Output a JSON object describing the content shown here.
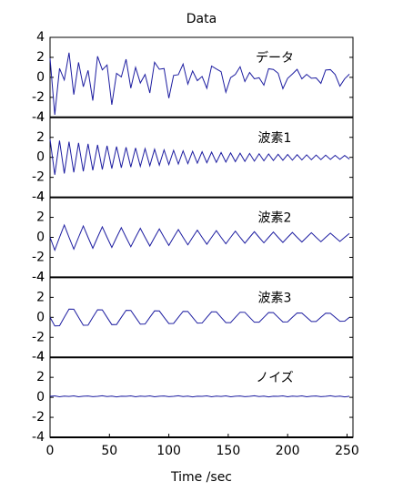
{
  "chart_data": [
    {
      "type": "line",
      "title": "Data",
      "annotation": "データ",
      "color": "#1c1ca0",
      "ylim": [
        -4,
        4
      ],
      "yticks": [
        -4,
        -2,
        0,
        2,
        4
      ],
      "values": [
        1.9,
        -3.74,
        0.9,
        -0.26,
        2.47,
        -1.72,
        1.5,
        -0.94,
        0.7,
        -2.32,
        2.11,
        0.75,
        1.24,
        -2.74,
        0.4,
        0.04,
        1.81,
        -1.08,
        1.0,
        -0.56,
        0.29,
        -1.56,
        1.51,
        0.81,
        0.88,
        -2.08,
        0.19,
        0.27,
        1.33,
        -0.67,
        0.64,
        -0.33,
        0.09,
        -1.09,
        1.13,
        0.84,
        0.57,
        -1.49,
        -0.03,
        0.3,
        1.06,
        -0.42,
        0.49,
        -0.14,
        -0.04,
        -0.78,
        0.86,
        0.79,
        0.41,
        -1.13,
        -0.1,
        0.33,
        0.8,
        -0.15,
        0.3,
        -0.09,
        -0.06,
        -0.6,
        0.73,
        0.77,
        0.28,
        -0.88,
        -0.15,
        0.32
      ]
    },
    {
      "type": "line",
      "annotation": "波素1",
      "color": "#1c1ca0",
      "ylim": [
        -4,
        4
      ],
      "yticks": [
        -4,
        -2,
        0,
        2,
        4
      ],
      "values": [
        1.8,
        -1.74,
        1.68,
        -1.61,
        1.56,
        -1.5,
        1.45,
        -1.4,
        1.35,
        -1.3,
        1.25,
        -1.21,
        1.16,
        -1.12,
        1.08,
        -1.04,
        1.01,
        -0.97,
        0.94,
        -0.9,
        0.87,
        -0.84,
        0.81,
        -0.78,
        0.75,
        -0.72,
        0.7,
        -0.67,
        0.65,
        -0.63,
        0.6,
        -0.58,
        0.56,
        -0.54,
        0.52,
        -0.5,
        0.48,
        -0.47,
        0.45,
        -0.43,
        0.42,
        -0.4,
        0.39,
        -0.38,
        0.36,
        -0.35,
        0.34,
        -0.32,
        0.31,
        -0.3,
        0.29,
        -0.28,
        0.27,
        -0.26,
        0.25,
        -0.24,
        0.23,
        -0.23,
        0.22,
        -0.21,
        0.2,
        -0.2,
        0.19,
        -0.18
      ]
    },
    {
      "type": "line",
      "annotation": "波素2",
      "color": "#1c1ca0",
      "ylim": [
        -4,
        4
      ],
      "yticks": [
        -4,
        -2,
        0,
        2,
        4
      ],
      "values": [
        0,
        -1.28,
        0,
        1.23,
        0,
        -1.18,
        0,
        1.14,
        0,
        -1.09,
        0,
        1.05,
        0,
        -1.01,
        0,
        0.97,
        0,
        -0.94,
        0,
        0.9,
        0,
        -0.87,
        0,
        0.84,
        0,
        -0.81,
        0,
        0.78,
        0,
        -0.75,
        0,
        0.72,
        0,
        -0.69,
        0,
        0.67,
        0,
        -0.64,
        0,
        0.62,
        0,
        -0.59,
        0,
        0.57,
        0,
        -0.55,
        0,
        0.53,
        0,
        -0.51,
        0,
        0.49,
        0,
        -0.47,
        0,
        0.46,
        0,
        -0.44,
        0,
        0.42,
        0,
        -0.41,
        0,
        0.39
      ]
    },
    {
      "type": "line",
      "annotation": "波素3",
      "color": "#1c1ca0",
      "ylim": [
        -4,
        4
      ],
      "yticks": [
        -4,
        -2,
        0,
        2,
        4
      ],
      "values": [
        0,
        -0.86,
        -0.84,
        0,
        0.82,
        0.81,
        0,
        -0.79,
        -0.78,
        0,
        0.76,
        0.75,
        0,
        -0.73,
        -0.72,
        0,
        0.7,
        0.69,
        0,
        -0.68,
        -0.67,
        0,
        0.65,
        0.64,
        0,
        -0.62,
        -0.61,
        0,
        0.6,
        0.59,
        0,
        -0.58,
        -0.57,
        0,
        0.55,
        0.55,
        0,
        -0.53,
        -0.53,
        0,
        0.51,
        0.5,
        0,
        -0.49,
        -0.48,
        0,
        0.48,
        0.47,
        0,
        -0.46,
        -0.45,
        0,
        0.44,
        0.43,
        0,
        -0.42,
        -0.42,
        0,
        0.41,
        0.4,
        0,
        -0.39,
        -0.38,
        0
      ]
    },
    {
      "type": "line",
      "annotation": "ノイズ",
      "color": "#1c1ca0",
      "xlabel": "Time /sec",
      "xlim": [
        0,
        255
      ],
      "xticks": [
        0,
        50,
        100,
        150,
        200,
        250
      ],
      "ylim": [
        -4,
        4
      ],
      "yticks": [
        -4,
        -2,
        0,
        2,
        4
      ],
      "x": [
        0,
        4,
        8,
        12,
        16,
        20,
        24,
        28,
        32,
        36,
        40,
        44,
        48,
        52,
        56,
        60,
        64,
        68,
        72,
        76,
        80,
        84,
        88,
        92,
        96,
        100,
        104,
        108,
        112,
        116,
        120,
        124,
        128,
        132,
        136,
        140,
        144,
        148,
        152,
        156,
        160,
        164,
        168,
        172,
        176,
        180,
        184,
        188,
        192,
        196,
        200,
        204,
        208,
        212,
        216,
        220,
        224,
        228,
        232,
        236,
        240,
        244,
        248,
        252
      ],
      "values": [
        0.1,
        0.14,
        0.06,
        0.12,
        0.09,
        0.15,
        0.05,
        0.11,
        0.13,
        0.07,
        0.1,
        0.16,
        0.08,
        0.12,
        0.04,
        0.11,
        0.1,
        0.14,
        0.06,
        0.12,
        0.09,
        0.15,
        0.05,
        0.11,
        0.13,
        0.07,
        0.1,
        0.16,
        0.08,
        0.12,
        0.04,
        0.11,
        0.1,
        0.14,
        0.06,
        0.12,
        0.09,
        0.15,
        0.05,
        0.11,
        0.13,
        0.07,
        0.1,
        0.16,
        0.08,
        0.12,
        0.04,
        0.11,
        0.1,
        0.14,
        0.06,
        0.12,
        0.09,
        0.15,
        0.05,
        0.11,
        0.13,
        0.07,
        0.1,
        0.16,
        0.08,
        0.12,
        0.04,
        0.11
      ]
    }
  ]
}
